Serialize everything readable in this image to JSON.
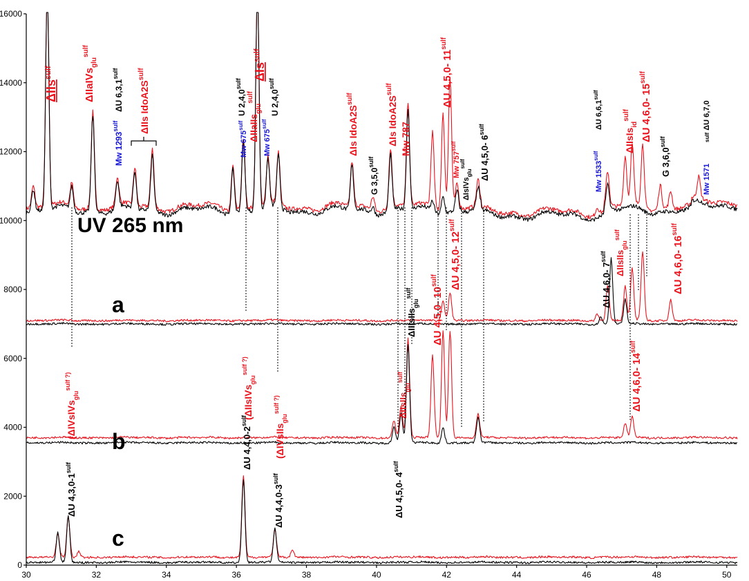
{
  "colors": {
    "red": "#e8141e",
    "black": "#000000",
    "blue": "#1414d2",
    "axis": "#000000"
  },
  "trace_labels": {
    "uv": "UV 265 nm",
    "a": "a",
    "b": "b",
    "c": "c"
  },
  "chart_data": {
    "type": "line",
    "title": "",
    "xlabel": "",
    "ylabel": "",
    "xlim": [
      30,
      50.3
    ],
    "ylim": [
      0,
      16000
    ],
    "x_ticks": [
      30,
      32,
      34,
      36,
      38,
      40,
      42,
      44,
      46,
      48,
      50
    ],
    "y_ticks": [
      0,
      2000,
      4000,
      6000,
      8000,
      10000,
      12000,
      14000,
      16000
    ],
    "grid": false,
    "legend": "none",
    "traces": [
      {
        "id": "uv",
        "label": "UV 265 nm",
        "baseline_red": 10400,
        "baseline_black": 10300,
        "peaks_red": [
          [
            30.2,
            11000
          ],
          [
            30.6,
            17000
          ],
          [
            31.3,
            11100
          ],
          [
            31.9,
            13200
          ],
          [
            32.6,
            11200
          ],
          [
            33.1,
            11500
          ],
          [
            33.6,
            12100
          ],
          [
            35.9,
            11700
          ],
          [
            36.2,
            12400
          ],
          [
            36.6,
            17000
          ],
          [
            36.9,
            11800
          ],
          [
            37.2,
            11900
          ],
          [
            39.3,
            11700
          ],
          [
            39.9,
            10800
          ],
          [
            40.4,
            12100
          ],
          [
            40.9,
            13400
          ],
          [
            41.6,
            12600
          ],
          [
            41.9,
            13200
          ],
          [
            42.1,
            14200
          ],
          [
            42.3,
            11100
          ],
          [
            42.9,
            11100
          ],
          [
            46.3,
            10600
          ],
          [
            46.6,
            11400
          ],
          [
            47.1,
            11800
          ],
          [
            47.3,
            12100
          ],
          [
            47.6,
            12200
          ],
          [
            48.1,
            11100
          ],
          [
            48.4,
            10900
          ],
          [
            49.2,
            11000
          ]
        ],
        "peaks_black": [
          [
            30.2,
            10900
          ],
          [
            30.6,
            17000
          ],
          [
            31.3,
            11000
          ],
          [
            31.9,
            13100
          ],
          [
            32.6,
            11100
          ],
          [
            33.1,
            11400
          ],
          [
            33.6,
            11900
          ],
          [
            35.9,
            11600
          ],
          [
            36.2,
            12300
          ],
          [
            36.6,
            17000
          ],
          [
            36.9,
            11700
          ],
          [
            37.2,
            11800
          ],
          [
            39.3,
            11600
          ],
          [
            39.9,
            10500
          ],
          [
            40.4,
            11900
          ],
          [
            40.9,
            13200
          ],
          [
            41.6,
            10600
          ],
          [
            41.9,
            10800
          ],
          [
            42.3,
            10900
          ],
          [
            42.9,
            10900
          ],
          [
            46.6,
            11000
          ]
        ]
      },
      {
        "id": "a",
        "label": "a",
        "baseline_red": 7100,
        "baseline_black": 7000,
        "peaks_red": [
          [
            41.9,
            7700
          ],
          [
            42.1,
            7900
          ],
          [
            46.3,
            7300
          ],
          [
            46.6,
            8100
          ],
          [
            47.1,
            8100
          ],
          [
            47.3,
            8600
          ],
          [
            47.6,
            9100
          ],
          [
            48.4,
            7700
          ]
        ],
        "peaks_black": [
          [
            46.4,
            7200
          ],
          [
            46.7,
            8900
          ],
          [
            47.1,
            7700
          ]
        ]
      },
      {
        "id": "b",
        "label": "b",
        "baseline_red": 3700,
        "baseline_black": 3550,
        "peaks_red": [
          [
            40.5,
            4200
          ],
          [
            40.7,
            4600
          ],
          [
            40.9,
            6600
          ],
          [
            41.6,
            6100
          ],
          [
            41.9,
            6800
          ],
          [
            42.1,
            6800
          ],
          [
            42.9,
            4400
          ],
          [
            47.1,
            4100
          ],
          [
            47.3,
            4300
          ]
        ],
        "peaks_black": [
          [
            40.5,
            4000
          ],
          [
            40.7,
            4400
          ],
          [
            40.9,
            6400
          ],
          [
            41.9,
            4000
          ],
          [
            42.9,
            4300
          ]
        ]
      },
      {
        "id": "c",
        "label": "c",
        "baseline_red": 230,
        "baseline_black": 80,
        "peaks_red": [
          [
            30.9,
            900
          ],
          [
            31.2,
            1400
          ],
          [
            31.5,
            400
          ],
          [
            36.2,
            2600
          ],
          [
            37.1,
            1000
          ],
          [
            37.6,
            450
          ]
        ],
        "peaks_black": [
          [
            30.9,
            950
          ],
          [
            31.2,
            1400
          ],
          [
            36.2,
            2500
          ],
          [
            37.1,
            1050
          ]
        ]
      }
    ]
  },
  "annotations": {
    "iis_top": "ΔIIs",
    "iis_top_sup": "sulf",
    "iiaivs": "ΔIIaIVs",
    "iiaivs_sub": "glu",
    "iiaivs_sup": "sulf",
    "u631": "ΔU 6,3,1",
    "u631_sup": "sulf",
    "mw1293": "Mw 1293",
    "mw1293_sup": "sulf",
    "iis_idoa": "ΔIIs IdoA2S",
    "iis_idoa_sup": "sulf",
    "mw675a": "Mw 675",
    "mw675a_sup": "sulf",
    "u240a": "U 2,4,0",
    "u240a_sup": "sulf",
    "iiaiis": "ΔIIaIIs",
    "iiaiis_sub": "glu",
    "iiaiis_sup": "sulf",
    "is_top": "ΔIs",
    "is_top_sup": "sulf",
    "mw675b": "Mw 675",
    "mw675b_sup": "sulf",
    "u240b": "U 2,4,0",
    "u240b_sup": "sulf",
    "is_idoa1": "ΔIs IdoA2S",
    "is_idoa1_sup": "sulf",
    "g350": "G 3,5,0",
    "g350_sup": "sulf",
    "is_idoa2": "ΔIs IdoA2S",
    "is_idoa2_sup": "sulf",
    "mw787": "Mw 787",
    "u45011": "ΔU 4,5,0- 11",
    "u45011_sup": "sulf",
    "mw757": "Mw 757",
    "mw757_sup": "sulf",
    "isivs": "ΔIsIVs",
    "isivs_sub": "glu",
    "isivs_sup": "sulf",
    "u4506": "ΔU 4,5,0- 6",
    "u4506_sup": "sulf",
    "mw1533": "Mw 1533",
    "mw1533_sup": "sulf",
    "u661": "ΔU 6,6,1",
    "u661_sup": "sulf",
    "iisis": "ΔIIsIs",
    "iisis_sub": "id",
    "iisis_sup": "sulf",
    "u46015": "ΔU 4,6,0- 15",
    "u46015_sup": "sulf",
    "g360": "G 3,6,0",
    "g360_sup": "sulf",
    "mw1571": "Mw 1571",
    "mw1571_sup": "sulf",
    "u670": "ΔU 6,7,0",
    "u670_sup": "sulf",
    "u4607": "ΔU 4,6,0- 7",
    "u4607_sup": "sulf",
    "iisiis_a": "ΔIIsIIs",
    "iisiis_a_sub": "glu",
    "iisiis_a_sup": "sulf",
    "u46016": "ΔU 4,6,0- 16",
    "u46016_sup": "sulf",
    "iiiis": "ΔIIIsIIs",
    "iiiis_sub": "glu",
    "iiiis_sup": "sulf",
    "u45010": "ΔU 4,5,0- 10",
    "u45010_sup": "sulf",
    "u45012": "ΔU 4,5,0- 12",
    "u45012_sup": "sulf",
    "iisiis_b": "ΔIIsIIs",
    "iisiis_b_sub": "glu",
    "iisiis_b_sup": "sulf",
    "u46014": "ΔU 4,6,0- 14",
    "u46014_sup": "sulf",
    "ivsivs": "(ΔIVsIVs",
    "ivsivs_sub": "glu",
    "ivsivs_sup": "sulf ?)",
    "iisivs": "(ΔIIsIVs",
    "iisivs_sub": "glu",
    "iisivs_sup": "sulf ?)",
    "ivsiis": "(ΔIVsIIs",
    "ivsiis_sub": "glu",
    "ivsiis_sup": "sulf ?)",
    "u4301": "ΔU 4,3,0-1",
    "u4301_sup": "sulf",
    "u4402": "ΔU 4,4,0-2",
    "u4402_sup": "sulf",
    "u4403": "ΔU 4,4,0-3",
    "u4403_sup": "sulf",
    "u4504": "ΔU 4,5,0- 4",
    "u4504_sup": "sulf"
  }
}
